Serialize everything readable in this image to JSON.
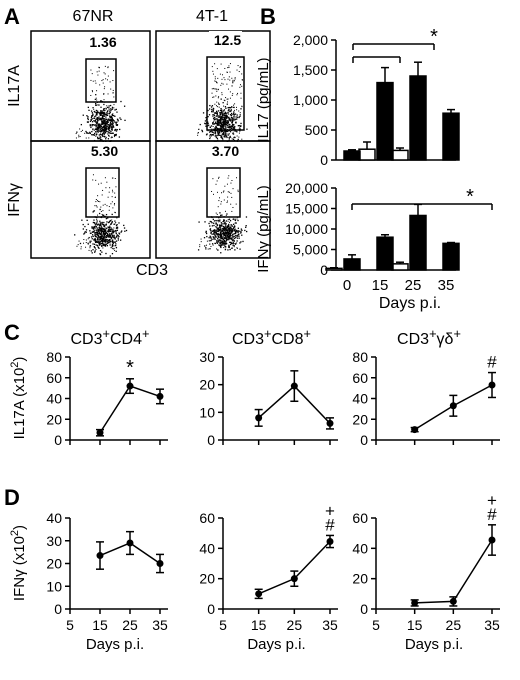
{
  "panels": {
    "A": "A",
    "B": "B",
    "C": "C",
    "D": "D"
  },
  "colors": {
    "ink": "#000000",
    "open_bar": "#ffffff",
    "filled_bar": "#000000",
    "background": "#ffffff"
  },
  "chart_data": [
    {
      "panel": "A",
      "type": "scatter",
      "chart_kind": "flow-cytometry dot plots (2x2 grid)",
      "columns": [
        "67NR",
        "4T-1"
      ],
      "rows": [
        "IL17A",
        "IFNγ"
      ],
      "xlabel": "CD3",
      "gates": [
        {
          "row": "IL17A",
          "column": "67NR",
          "value": "1.36"
        },
        {
          "row": "IL17A",
          "column": "4T-1",
          "value": "12.5"
        },
        {
          "row": "IFNγ",
          "column": "67NR",
          "value": "5.30"
        },
        {
          "row": "IFNγ",
          "column": "4T-1",
          "value": "3.70"
        }
      ]
    },
    {
      "panel": "B",
      "type": "bar",
      "xlabel": "Days p.i.",
      "categories": [
        "0",
        "15",
        "25",
        "35"
      ],
      "subplots": [
        {
          "ylabel": "IL17 (pg/mL)",
          "ylim": [
            0,
            2000
          ],
          "yticks": [
            "0",
            "500",
            "1,000",
            "1,500",
            "2,000"
          ],
          "series": [
            {
              "fill": "open",
              "values": [
                null,
                180,
                160,
                null
              ],
              "errors": [
                null,
                120,
                40,
                null
              ]
            },
            {
              "fill": "filled",
              "values": [
                150,
                1290,
                1400,
                780
              ],
              "errors": [
                20,
                250,
                230,
                60
              ]
            }
          ],
          "significance": "*"
        },
        {
          "ylabel": "IFNγ (pg/mL)",
          "ylim": [
            0,
            20000
          ],
          "yticks": [
            "0",
            "5,000",
            "10,000",
            "15,000",
            "20,000"
          ],
          "series": [
            {
              "fill": "open",
              "values": [
                400,
                null,
                1500,
                null
              ],
              "errors": [
                150,
                null,
                400,
                null
              ]
            },
            {
              "fill": "filled",
              "values": [
                2700,
                8000,
                13300,
                6500
              ],
              "errors": [
                1000,
                600,
                2700,
                200
              ]
            }
          ],
          "significance": "*"
        }
      ]
    },
    {
      "panel": "C",
      "type": "line",
      "ylabel": "IL17A (x10²)",
      "subplots": [
        {
          "title": "CD3⁺CD4⁺",
          "x": [
            15,
            25,
            35
          ],
          "y": [
            7,
            52,
            42
          ],
          "err": [
            3,
            7,
            7
          ],
          "ylim": [
            0,
            80
          ],
          "yticks": [
            "0",
            "20",
            "40",
            "60",
            "80"
          ],
          "marks": [
            {
              "x": 25,
              "text": "*"
            }
          ]
        },
        {
          "title": "CD3⁺CD8⁺",
          "x": [
            15,
            25,
            35
          ],
          "y": [
            8,
            19.5,
            6
          ],
          "err": [
            3,
            5.5,
            2
          ],
          "ylim": [
            0,
            30
          ],
          "yticks": [
            "0",
            "10",
            "20",
            "30"
          ],
          "marks": []
        },
        {
          "title": "CD3⁺γδ⁺",
          "x": [
            15,
            25,
            35
          ],
          "y": [
            10,
            33,
            53
          ],
          "err": [
            2,
            10,
            12
          ],
          "ylim": [
            0,
            80
          ],
          "yticks": [
            "0",
            "20",
            "40",
            "60",
            "80"
          ],
          "marks": [
            {
              "x": 35,
              "text": "#"
            }
          ]
        }
      ]
    },
    {
      "panel": "D",
      "type": "line",
      "ylabel": "IFNγ (x10²)",
      "xlabel": "Days p.i.",
      "xticks": [
        "5",
        "15",
        "25",
        "35"
      ],
      "subplots": [
        {
          "x": [
            15,
            25,
            35
          ],
          "y": [
            23.5,
            29,
            20
          ],
          "err": [
            6,
            5,
            4
          ],
          "ylim": [
            0,
            40
          ],
          "yticks": [
            "0",
            "10",
            "20",
            "30",
            "40"
          ],
          "marks": []
        },
        {
          "x": [
            15,
            25,
            35
          ],
          "y": [
            10,
            20,
            44.5
          ],
          "err": [
            3,
            5,
            4
          ],
          "ylim": [
            0,
            60
          ],
          "yticks": [
            "0",
            "20",
            "40",
            "60"
          ],
          "marks": [
            {
              "x": 35,
              "text": "#"
            },
            {
              "x": 35,
              "text": "+"
            }
          ]
        },
        {
          "x": [
            15,
            25,
            35
          ],
          "y": [
            4,
            5,
            45.5
          ],
          "err": [
            2,
            3,
            10
          ],
          "ylim": [
            0,
            60
          ],
          "yticks": [
            "0",
            "20",
            "40",
            "60"
          ],
          "marks": [
            {
              "x": 35,
              "text": "#"
            },
            {
              "x": 35,
              "text": "+"
            }
          ]
        }
      ]
    }
  ]
}
